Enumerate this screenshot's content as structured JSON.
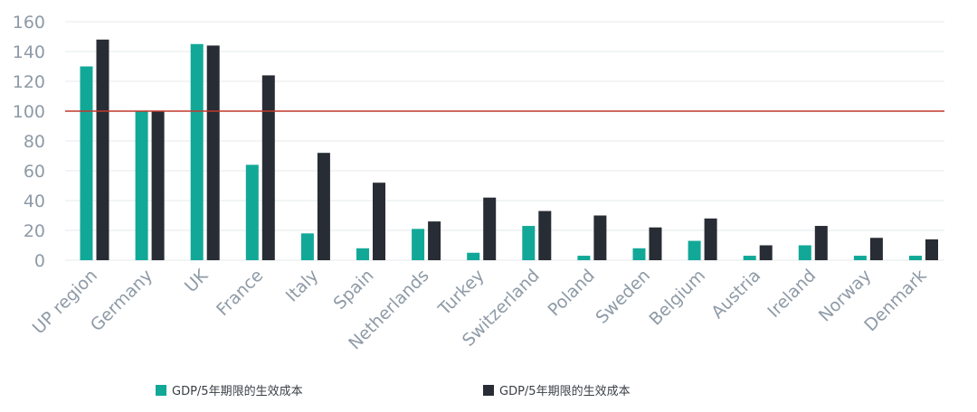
{
  "chart_data": {
    "type": "bar",
    "categories": [
      "UP region",
      "Germany",
      "UK",
      "France",
      "Italy",
      "Spain",
      "Netherlands",
      "Turkey",
      "Switzerland",
      "Poland",
      "Sweden",
      "Belgium",
      "Austria",
      "Ireland",
      "Norway",
      "Denmark"
    ],
    "series": [
      {
        "name": "GDP/5年期限的生效成本",
        "color": "#12a898",
        "values": [
          130,
          100,
          145,
          64,
          18,
          8,
          21,
          5,
          23,
          3,
          8,
          13,
          3,
          10,
          3,
          3
        ]
      },
      {
        "name": "GDP/5年期限的生效成本",
        "color": "#282c34",
        "values": [
          148,
          100,
          144,
          124,
          72,
          52,
          26,
          42,
          33,
          30,
          22,
          28,
          10,
          23,
          15,
          14
        ]
      }
    ],
    "reference_line": {
      "value": 100,
      "color": "#c0392b"
    },
    "yticks": [
      0,
      20,
      40,
      60,
      80,
      100,
      120,
      140,
      160
    ],
    "ylim": [
      0,
      160
    ],
    "grid": true,
    "legend_position": "bottom",
    "title": "",
    "xlabel": "",
    "ylabel": ""
  }
}
